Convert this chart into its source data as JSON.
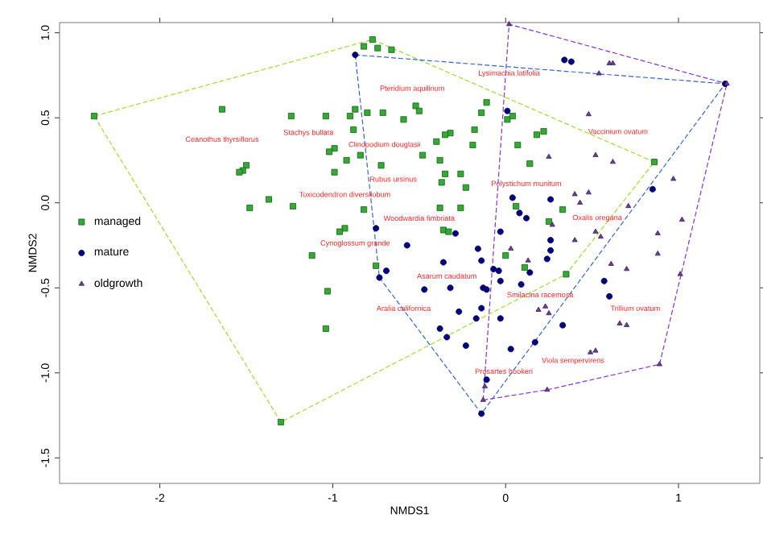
{
  "chart_data": {
    "type": "scatter",
    "xlabel": "NMDS1",
    "ylabel": "NMDS2",
    "xlim": [
      -2.58,
      1.47
    ],
    "ylim": [
      -1.65,
      1.06
    ],
    "xticks": [
      -2,
      -1,
      0,
      1
    ],
    "yticks": [
      {
        "value": -1.5,
        "label": "-1.5"
      },
      {
        "value": -1.0,
        "label": "-1.0"
      },
      {
        "value": -0.5,
        "label": "-0.5"
      },
      {
        "value": 0.0,
        "label": "0.0"
      },
      {
        "value": 0.5,
        "label": "0.5"
      },
      {
        "value": 1.0,
        "label": "1.0"
      }
    ],
    "grid": false,
    "legend": "left",
    "series": [
      {
        "type": "line",
        "line_style": "dashed",
        "marker": "none",
        "color": "#99dd33",
        "x": [
          -2.38,
          -0.77,
          0.86
        ],
        "values": [
          0.51,
          0.96,
          0.24
        ]
      },
      {
        "type": "line",
        "line_style": "dashed",
        "marker": "none",
        "color": "#99dd33",
        "x": [
          -2.38,
          -1.3,
          0.35,
          0.86
        ],
        "values": [
          0.51,
          -1.29,
          -0.42,
          0.24
        ]
      },
      {
        "type": "line",
        "line_style": "dashed",
        "marker": "none",
        "color": "#3366cc",
        "x": [
          -0.87,
          1.27
        ],
        "values": [
          0.87,
          0.7
        ]
      },
      {
        "type": "line",
        "line_style": "dashed",
        "marker": "none",
        "color": "#3366cc",
        "x": [
          -0.87,
          -0.73,
          -0.14,
          1.27
        ],
        "values": [
          0.87,
          -0.44,
          -1.24,
          0.7
        ]
      },
      {
        "type": "line",
        "line_style": "dashed",
        "marker": "none",
        "color": "#8833cc",
        "x": [
          -0.13,
          0.02,
          1.28
        ],
        "values": [
          -1.16,
          1.05,
          0.7
        ]
      },
      {
        "type": "line",
        "line_style": "dashed",
        "marker": "none",
        "color": "#8833cc",
        "x": [
          -0.13,
          0.24,
          0.89,
          1.28
        ],
        "values": [
          -1.16,
          -1.1,
          -0.95,
          0.7
        ]
      },
      {
        "name": "managed",
        "marker": "square",
        "color": "#33aa33",
        "x": [
          -2.38,
          -0.77,
          -0.82,
          -0.74,
          -0.66,
          -1.64,
          -1.24,
          -1.04,
          -0.9,
          -0.87,
          -0.8,
          -0.71,
          -0.59,
          -0.52,
          -0.5,
          -0.88,
          -0.99,
          -1.02,
          -0.92,
          -0.84,
          -0.72,
          -0.99,
          -1.5,
          -1.52,
          -1.54,
          -1.48,
          -1.37,
          -1.23,
          -0.82,
          -0.93,
          -0.96,
          -1.12,
          -0.75,
          -0.11,
          -0.14,
          0.01,
          0.04,
          -0.18,
          -0.32,
          -0.35,
          -0.4,
          -0.19,
          0.07,
          0.18,
          0.22,
          -0.48,
          -0.38,
          0.14,
          0.86,
          -0.35,
          -0.26,
          -0.37,
          -0.23,
          -0.38,
          -0.26,
          0.06,
          0.33,
          0.25,
          -0.36,
          -0.33,
          0.0,
          0.11,
          -1.03,
          -1.04,
          -1.3,
          0.35
        ],
        "values": [
          0.51,
          0.96,
          0.92,
          0.91,
          0.9,
          0.55,
          0.51,
          0.51,
          0.51,
          0.55,
          0.53,
          0.53,
          0.49,
          0.57,
          0.54,
          0.43,
          0.32,
          0.3,
          0.25,
          0.28,
          0.22,
          0.18,
          0.22,
          0.19,
          0.18,
          -0.03,
          0.02,
          -0.02,
          -0.04,
          -0.15,
          -0.17,
          -0.31,
          -0.37,
          0.59,
          0.53,
          0.49,
          0.51,
          0.43,
          0.41,
          0.4,
          0.36,
          0.34,
          0.34,
          0.4,
          0.42,
          0.28,
          0.25,
          0.23,
          0.24,
          0.17,
          0.17,
          0.12,
          0.09,
          -0.03,
          -0.03,
          -0.02,
          -0.04,
          -0.11,
          -0.16,
          -0.17,
          -0.31,
          -0.38,
          -0.52,
          -0.74,
          -1.29,
          -0.42
        ]
      },
      {
        "name": "mature",
        "marker": "circle",
        "color": "#000080",
        "x": [
          -0.87,
          -0.75,
          -0.57,
          -0.69,
          -0.73,
          0.34,
          0.38,
          0.01,
          0.04,
          0.26,
          0.08,
          0.12,
          -0.03,
          -0.29,
          0.26,
          0.85,
          -0.16,
          -0.14,
          -0.36,
          -0.07,
          -0.04,
          0.24,
          0.26,
          -0.47,
          -0.32,
          -0.13,
          -0.11,
          -0.03,
          0.09,
          0.14,
          -0.27,
          -0.14,
          -0.17,
          -0.03,
          -0.38,
          -0.34,
          -0.23,
          0.03,
          0.17,
          0.33,
          0.57,
          0.6,
          -0.11,
          -0.14,
          1.27
        ],
        "values": [
          0.87,
          -0.15,
          -0.25,
          -0.4,
          -0.44,
          0.84,
          0.83,
          0.54,
          0.03,
          0.02,
          -0.06,
          -0.09,
          -0.17,
          -0.18,
          -0.22,
          0.08,
          -0.27,
          -0.34,
          -0.35,
          -0.39,
          -0.4,
          -0.33,
          -0.28,
          -0.51,
          -0.5,
          -0.5,
          -0.51,
          -0.46,
          -0.48,
          -0.41,
          -0.64,
          -0.62,
          -0.68,
          -0.68,
          -0.74,
          -0.79,
          -0.84,
          -0.86,
          -0.82,
          -0.72,
          -0.46,
          -0.55,
          -1.04,
          -1.24,
          0.7
        ]
      },
      {
        "name": "oldgrowth",
        "marker": "triangle",
        "color": "#6a3d9a",
        "x": [
          0.02,
          0.6,
          0.62,
          0.54,
          1.28,
          0.48,
          0.25,
          0.52,
          0.62,
          0.97,
          0.4,
          0.48,
          0.43,
          0.71,
          1.02,
          0.27,
          0.52,
          0.55,
          0.4,
          0.03,
          0.88,
          0.88,
          0.61,
          0.7,
          0.13,
          1.01,
          0.19,
          0.23,
          0.25,
          0.66,
          0.7,
          0.49,
          0.52,
          0.89,
          0.24,
          -0.12,
          -0.13
        ],
        "values": [
          1.05,
          0.82,
          0.82,
          0.76,
          0.7,
          0.52,
          0.27,
          0.28,
          0.24,
          0.14,
          0.05,
          0.06,
          0.0,
          -0.02,
          -0.1,
          -0.13,
          -0.17,
          -0.2,
          -0.22,
          -0.27,
          -0.18,
          -0.3,
          -0.36,
          -0.39,
          -0.34,
          -0.42,
          -0.63,
          -0.61,
          -0.65,
          -0.71,
          -0.72,
          -0.88,
          -0.87,
          -0.95,
          -1.1,
          -1.08,
          -1.16
        ]
      }
    ],
    "annotations": [
      "Ceanothus thyrsiflorus",
      "Stachys bullata",
      "Pteridium aquilinum",
      "Clinopodium douglasii",
      "Rubus ursinus",
      "Toxicodendron diversilobum",
      "Woodwardia fimbriata",
      "Cynoglossum grande",
      "Lysimachia latifolia",
      "Vaccinium ovatum",
      "Polystichum munitum",
      "Oxalis oregana",
      "Asarum caudatum",
      "Aralia californica",
      "Smilacina racemosa",
      "Trillium ovatum",
      "Viola sempervirens",
      "Prosartes hookeri"
    ]
  }
}
